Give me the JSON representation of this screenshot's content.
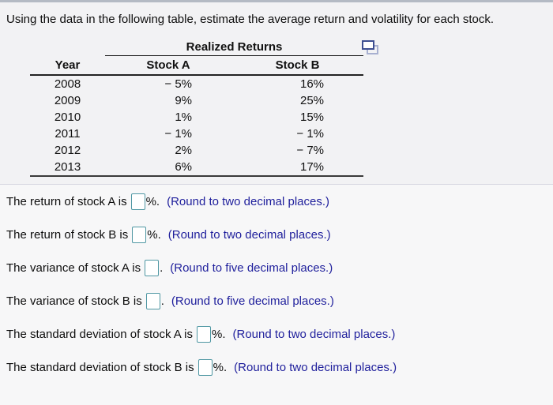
{
  "title": "Using the data in the following table, estimate the average return and volatility for each stock.",
  "table": {
    "group_header": "Realized Returns",
    "columns": {
      "year": "Year",
      "stock_a": "Stock A",
      "stock_b": "Stock B"
    },
    "rows": [
      {
        "year": "2008",
        "stock_a": "− 5%",
        "stock_b": "16%"
      },
      {
        "year": "2009",
        "stock_a": "9%",
        "stock_b": "25%"
      },
      {
        "year": "2010",
        "stock_a": "1%",
        "stock_b": "15%"
      },
      {
        "year": "2011",
        "stock_a": "− 1%",
        "stock_b": "− 1%"
      },
      {
        "year": "2012",
        "stock_a": "2%",
        "stock_b": "− 7%"
      },
      {
        "year": "2013",
        "stock_a": "6%",
        "stock_b": "17%"
      }
    ]
  },
  "icons": {
    "copy_table": "copy-table-icon"
  },
  "questions": [
    {
      "prefix": "The return of stock A is",
      "value": "",
      "suffix": "%.",
      "instruction": "(Round to two decimal places.)"
    },
    {
      "prefix": "The return of stock B is",
      "value": "",
      "suffix": "%.",
      "instruction": "(Round to two decimal places.)"
    },
    {
      "prefix": "The variance of stock A is",
      "value": "",
      "suffix": ".",
      "instruction": "(Round to five decimal places.)"
    },
    {
      "prefix": "The variance of stock B is",
      "value": "",
      "suffix": ".",
      "instruction": "(Round to five decimal places.)"
    },
    {
      "prefix": "The standard deviation of stock A is",
      "value": "",
      "suffix": "%.",
      "instruction": "(Round to two decimal places.)"
    },
    {
      "prefix": "The standard deviation of stock B is",
      "value": "",
      "suffix": "%.",
      "instruction": "(Round to two decimal places.)"
    }
  ],
  "colors": {
    "instruction_text": "#1f1f9c",
    "answer_box_border": "#4f97a3",
    "divider": "#d8d8e2",
    "top_strip": "#b4bac4",
    "copy_icon_front": "#3d4e91",
    "copy_icon_back": "#a8b0d0"
  }
}
